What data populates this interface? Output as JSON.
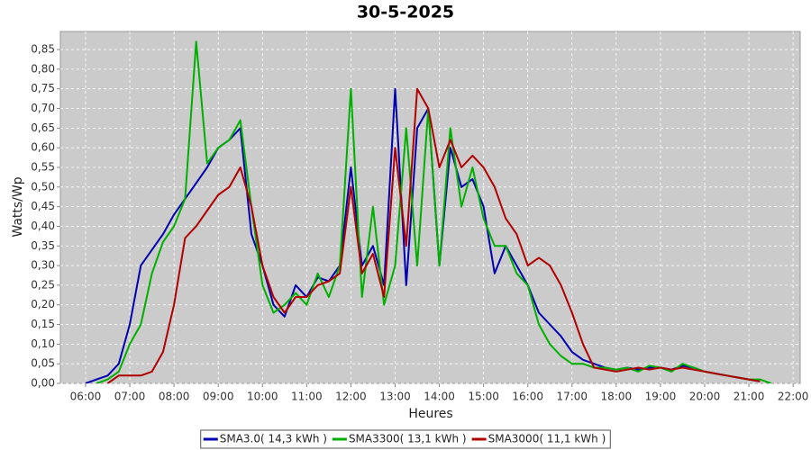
{
  "chart_data": {
    "type": "line",
    "title": "30-5-2025",
    "x_label": "Heures",
    "y_label": "Watts/Wp",
    "x": [
      6,
      6.25,
      6.5,
      6.75,
      7,
      7.25,
      7.5,
      7.75,
      8,
      8.25,
      8.5,
      8.75,
      9,
      9.25,
      9.5,
      9.75,
      10,
      10.25,
      10.5,
      10.75,
      11,
      11.25,
      11.5,
      11.75,
      12,
      12.25,
      12.5,
      12.75,
      13,
      13.25,
      13.5,
      13.75,
      14,
      14.25,
      14.5,
      14.75,
      15,
      15.25,
      15.5,
      15.75,
      16,
      16.25,
      16.5,
      16.75,
      17,
      17.25,
      17.5,
      17.75,
      18,
      18.25,
      18.5,
      18.75,
      19,
      19.25,
      19.5,
      19.75,
      20,
      20.25,
      20.5,
      20.75,
      21,
      21.25,
      21.5
    ],
    "series": [
      {
        "name": "SMA3.0( 14,3 kWh )",
        "color": "#0000b0",
        "values": [
          0,
          0.01,
          0.02,
          0.05,
          0.15,
          0.3,
          0.34,
          0.38,
          0.43,
          0.47,
          0.51,
          0.55,
          0.6,
          0.62,
          0.65,
          0.38,
          0.3,
          0.2,
          0.17,
          0.25,
          0.22,
          0.27,
          0.26,
          0.3,
          0.55,
          0.3,
          0.35,
          0.25,
          0.75,
          0.25,
          0.65,
          0.7,
          0.3,
          0.6,
          0.5,
          0.52,
          0.45,
          0.28,
          0.35,
          0.3,
          0.25,
          0.18,
          0.15,
          0.12,
          0.08,
          0.06,
          0.05,
          0.04,
          0.035,
          0.04,
          0.035,
          0.04,
          0.04,
          0.035,
          0.045,
          0.04,
          0.03,
          0.025,
          0.02,
          0.015,
          0.01,
          0.005,
          null
        ]
      },
      {
        "name": "SMA3300( 13,1 kWh )",
        "color": "#00b000",
        "values": [
          null,
          0,
          0.01,
          0.03,
          0.1,
          0.15,
          0.28,
          0.36,
          0.4,
          0.47,
          0.87,
          0.56,
          0.6,
          0.62,
          0.67,
          0.45,
          0.25,
          0.18,
          0.2,
          0.23,
          0.2,
          0.28,
          0.22,
          0.3,
          0.75,
          0.22,
          0.45,
          0.2,
          0.3,
          0.65,
          0.3,
          0.7,
          0.3,
          0.65,
          0.45,
          0.55,
          0.42,
          0.35,
          0.35,
          0.28,
          0.25,
          0.15,
          0.1,
          0.07,
          0.05,
          0.05,
          0.04,
          0.04,
          0.035,
          0.04,
          0.03,
          0.045,
          0.04,
          0.03,
          0.05,
          0.04,
          0.03,
          0.025,
          0.02,
          0.015,
          0.01,
          0.01,
          0
        ]
      },
      {
        "name": "SMA3000( 11,1 kWh )",
        "color": "#b00000",
        "values": [
          null,
          null,
          0,
          0.02,
          0.02,
          0.02,
          0.03,
          0.08,
          0.2,
          0.37,
          0.4,
          0.44,
          0.48,
          0.5,
          0.55,
          0.45,
          0.3,
          0.22,
          0.18,
          0.22,
          0.22,
          0.25,
          0.26,
          0.28,
          0.5,
          0.28,
          0.33,
          0.22,
          0.6,
          0.35,
          0.75,
          0.7,
          0.55,
          0.62,
          0.55,
          0.58,
          0.55,
          0.5,
          0.42,
          0.38,
          0.3,
          0.32,
          0.3,
          0.25,
          0.18,
          0.1,
          0.04,
          0.035,
          0.03,
          0.035,
          0.04,
          0.035,
          0.04,
          0.035,
          0.04,
          0.035,
          0.03,
          0.025,
          0.02,
          0.015,
          0.01,
          0.005,
          null
        ]
      }
    ],
    "xlim": [
      5.43,
      22.16
    ],
    "ylim": [
      0,
      0.896
    ],
    "xticks": [
      {
        "value": 6,
        "label": "06:00"
      },
      {
        "value": 7,
        "label": "07:00"
      },
      {
        "value": 8,
        "label": "08:00"
      },
      {
        "value": 9,
        "label": "09:00"
      },
      {
        "value": 10,
        "label": "10:00"
      },
      {
        "value": 11,
        "label": "11:00"
      },
      {
        "value": 12,
        "label": "12:00"
      },
      {
        "value": 13,
        "label": "13:00"
      },
      {
        "value": 14,
        "label": "14:00"
      },
      {
        "value": 15,
        "label": "15:00"
      },
      {
        "value": 16,
        "label": "16:00"
      },
      {
        "value": 17,
        "label": "17:00"
      },
      {
        "value": 18,
        "label": "18:00"
      },
      {
        "value": 19,
        "label": "19:00"
      },
      {
        "value": 20,
        "label": "20:00"
      },
      {
        "value": 21,
        "label": "21:00"
      },
      {
        "value": 22,
        "label": "22:00"
      }
    ],
    "yticks": [
      {
        "value": 0,
        "label": "0,00"
      },
      {
        "value": 0.05,
        "label": "0,05"
      },
      {
        "value": 0.1,
        "label": "0,10"
      },
      {
        "value": 0.15,
        "label": "0,15"
      },
      {
        "value": 0.2,
        "label": "0,20"
      },
      {
        "value": 0.25,
        "label": "0,25"
      },
      {
        "value": 0.3,
        "label": "0,30"
      },
      {
        "value": 0.35,
        "label": "0,35"
      },
      {
        "value": 0.4,
        "label": "0,40"
      },
      {
        "value": 0.45,
        "label": "0,45"
      },
      {
        "value": 0.5,
        "label": "0,50"
      },
      {
        "value": 0.55,
        "label": "0,55"
      },
      {
        "value": 0.6,
        "label": "0,60"
      },
      {
        "value": 0.65,
        "label": "0,65"
      },
      {
        "value": 0.7,
        "label": "0,70"
      },
      {
        "value": 0.75,
        "label": "0,75"
      },
      {
        "value": 0.8,
        "label": "0,80"
      },
      {
        "value": 0.85,
        "label": "0,85"
      }
    ],
    "grid": true,
    "legend_position": "bottom"
  }
}
